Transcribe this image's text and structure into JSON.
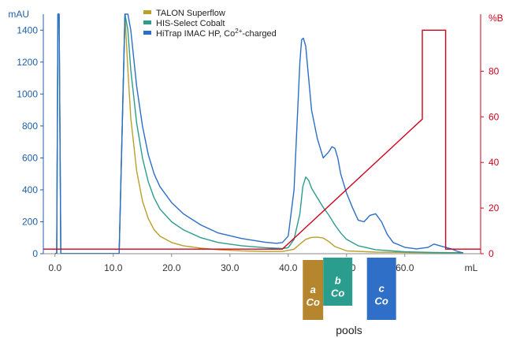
{
  "chart_data": {
    "type": "line",
    "x_axis": {
      "unit": "mL",
      "min": -2,
      "max": 73,
      "ticks": [
        "0.0",
        "10.0",
        "20.0",
        "30.0",
        "40.0",
        "50.0",
        "60.0"
      ],
      "tick_values": [
        0,
        10,
        20,
        30,
        40,
        50,
        60
      ]
    },
    "y_left": {
      "unit": "mAU",
      "min": 0,
      "max": 1500,
      "ticks": [
        "0",
        "200",
        "400",
        "600",
        "800",
        "1000",
        "1200",
        "1400"
      ],
      "tick_values": [
        0,
        200,
        400,
        600,
        800,
        1000,
        1200,
        1400
      ]
    },
    "y_right": {
      "unit": "%B",
      "min": 0,
      "max": 105,
      "ticks": [
        "0",
        "20",
        "40",
        "60",
        "80"
      ],
      "tick_values": [
        0,
        20,
        40,
        60,
        80
      ]
    },
    "legend": [
      {
        "name": "TALON Superflow",
        "color": "#b8a02a"
      },
      {
        "name": "HIS-Select Cobalt",
        "color": "#2a9d8f"
      },
      {
        "name_main": "HiTrap IMAC HP, Co",
        "name_sup": "2+",
        "name_tail": "-charged",
        "color": "#2b6ec9"
      }
    ],
    "series": [
      {
        "name": "TALON Superflow",
        "color": "#b8a02a",
        "x": [
          0,
          0.3,
          0.5,
          0.7,
          1,
          5,
          11,
          12,
          12.5,
          13,
          14,
          15,
          16,
          17,
          18,
          20,
          22,
          25,
          28,
          32,
          36,
          39,
          41,
          42,
          43,
          44,
          45,
          46,
          47,
          48,
          50,
          55,
          60,
          65,
          70
        ],
        "y": [
          0,
          0,
          1500,
          1500,
          0,
          0,
          0,
          1500,
          1150,
          850,
          520,
          330,
          220,
          150,
          110,
          70,
          50,
          35,
          25,
          18,
          14,
          14,
          28,
          60,
          90,
          102,
          103,
          98,
          75,
          45,
          18,
          10,
          8,
          6,
          5
        ]
      },
      {
        "name": "HIS-Select Cobalt",
        "color": "#2a9d8f",
        "x": [
          0,
          0.3,
          0.5,
          0.7,
          1,
          5,
          11,
          12,
          12.5,
          13,
          14,
          15,
          16,
          17,
          18,
          20,
          22,
          25,
          28,
          32,
          36,
          39,
          40,
          41,
          42,
          42.5,
          43,
          43.5,
          44,
          45,
          46,
          47,
          48,
          49,
          50,
          52,
          55,
          60,
          65,
          70
        ],
        "y": [
          0,
          0,
          1500,
          1500,
          0,
          0,
          0,
          1500,
          1400,
          1150,
          820,
          600,
          450,
          350,
          280,
          200,
          150,
          100,
          70,
          50,
          38,
          32,
          38,
          90,
          250,
          420,
          480,
          460,
          410,
          350,
          290,
          240,
          180,
          130,
          90,
          50,
          25,
          12,
          8,
          6
        ]
      },
      {
        "name": "HiTrap IMAC HP, Co2+-charged",
        "color": "#2b6ec9",
        "x": [
          0,
          0.3,
          0.5,
          0.7,
          1,
          5,
          11,
          12,
          12.5,
          13,
          14,
          15,
          16,
          17,
          18,
          20,
          22,
          25,
          28,
          32,
          36,
          38,
          39,
          40,
          41,
          41.5,
          42,
          42.3,
          42.6,
          43,
          43.5,
          44,
          45,
          46,
          47,
          47.5,
          48,
          48.5,
          49,
          50,
          51,
          52,
          53,
          54,
          55,
          56,
          57,
          58,
          60,
          62,
          64,
          65,
          66,
          67,
          68,
          69,
          70
        ],
        "y": [
          0,
          0,
          1500,
          1500,
          0,
          0,
          0,
          1500,
          1500,
          1400,
          1050,
          800,
          620,
          500,
          420,
          320,
          250,
          180,
          130,
          95,
          72,
          65,
          70,
          110,
          400,
          800,
          1200,
          1340,
          1350,
          1300,
          1100,
          900,
          720,
          600,
          640,
          670,
          660,
          600,
          500,
          380,
          290,
          210,
          200,
          240,
          250,
          200,
          120,
          70,
          40,
          30,
          40,
          60,
          50,
          40,
          30,
          15,
          5
        ]
      }
    ],
    "gradient": {
      "name": "%B",
      "color": "#d0021b",
      "x": [
        -2,
        39,
        63,
        63,
        67,
        67,
        73
      ],
      "y": [
        2,
        2,
        59,
        98,
        98,
        2,
        2
      ]
    },
    "pools": {
      "label": "pools",
      "items": [
        {
          "top": "a",
          "bottom": "Co",
          "color": "#b5862e",
          "x_start": 42.5,
          "x_end": 46
        },
        {
          "top": "b",
          "bottom": "Co",
          "color": "#2a9d8f",
          "x_start": 46,
          "x_end": 51
        },
        {
          "top": "c",
          "bottom": "Co",
          "color": "#2f6fc7",
          "x_start": 53.5,
          "x_end": 58.5
        }
      ]
    }
  }
}
